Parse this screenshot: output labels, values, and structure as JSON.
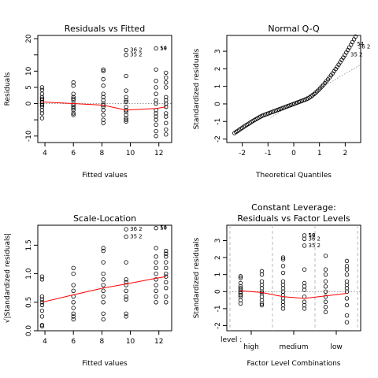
{
  "chart_data": [
    {
      "type": "scatter",
      "title": "Residuals vs Fitted",
      "xlabel": "Fitted values",
      "ylabel": "Residuals",
      "xlim": [
        3.5,
        12.9
      ],
      "ylim": [
        -12,
        21
      ],
      "xticks": [
        4,
        6,
        8,
        10,
        12
      ],
      "yticks": [
        -10,
        -5,
        0,
        5,
        10,
        15,
        20
      ],
      "ytick_labels": [
        "-10",
        "",
        "0",
        "5",
        "10",
        "",
        "20"
      ],
      "groups": [
        {
          "x": 3.8,
          "y": [
            5,
            4.2,
            3,
            2,
            1.5,
            1,
            0.5,
            0,
            -0.5,
            -1,
            -2,
            -3,
            -4.5
          ]
        },
        {
          "x": 6.0,
          "y": [
            6.5,
            5.5,
            3,
            2,
            1.5,
            1,
            0,
            -0.5,
            -1,
            -1.5,
            -2,
            -3,
            -3.5
          ]
        },
        {
          "x": 8.1,
          "y": [
            10.5,
            10,
            7.5,
            5.5,
            3,
            2,
            1,
            0,
            -0.5,
            -1,
            -2,
            -3.5,
            -5,
            -6
          ]
        },
        {
          "x": 9.7,
          "y": [
            16.5,
            15,
            8.5,
            4,
            2,
            1,
            0.5,
            -1,
            -2,
            -2.5,
            -3.5,
            -4.5,
            -5,
            -5.5
          ]
        },
        {
          "x": 11.8,
          "y": [
            17,
            10.5,
            7,
            5,
            3,
            1,
            0,
            -2,
            -3,
            -4,
            -5,
            -6.5,
            -8.5,
            -10
          ]
        },
        {
          "x": 12.5,
          "y": [
            9.5,
            8,
            6.5,
            5,
            2,
            1,
            0,
            -1,
            -3,
            -4,
            -6,
            -8,
            -9.5
          ]
        }
      ],
      "smoother": [
        [
          3.8,
          0.5
        ],
        [
          6.0,
          0
        ],
        [
          8.1,
          -0.5
        ],
        [
          9.7,
          -2
        ],
        [
          11.8,
          -1.5
        ],
        [
          12.5,
          -1
        ]
      ],
      "reference_line": 0,
      "labeled_points": [
        {
          "label": "36",
          "x": 9.7,
          "y": 16.5
        },
        {
          "label": "35",
          "x": 9.7,
          "y": 15
        },
        {
          "label": "54",
          "x": 11.8,
          "y": 17
        },
        {
          "label": "2",
          "x": 9.7,
          "y": 16.5
        },
        {
          "label": "2",
          "x": 9.7,
          "y": 15
        },
        {
          "label": "10",
          "x": 11.8,
          "y": 17
        }
      ]
    },
    {
      "type": "scatter",
      "title": "Normal Q-Q",
      "xlabel": "Theoretical Quantiles",
      "ylabel": "Standardized residuals",
      "xlim": [
        -2.6,
        2.6
      ],
      "ylim": [
        -2.2,
        3.9
      ],
      "xticks": [
        -2,
        -1,
        0,
        1,
        2
      ],
      "yticks": [
        -2,
        -1,
        0,
        1,
        2,
        3
      ],
      "qq_x_range": [
        -2.3,
        2.4
      ],
      "qq_pattern": "s-shaped",
      "reference_line": {
        "intercept": 0,
        "slope": 0.86
      },
      "labeled_points": [
        {
          "label": "54",
          "x": 2.3,
          "y": 3.4
        },
        {
          "label": "36",
          "x": 2.35,
          "y": 3.25
        },
        {
          "label": "35",
          "x": 2.05,
          "y": 2.8
        },
        {
          "label": "2",
          "x": 2.35,
          "y": 3.25
        },
        {
          "label": "2",
          "x": 2.05,
          "y": 2.8
        }
      ]
    },
    {
      "type": "scatter",
      "title": "Scale-Location",
      "xlabel": "Fitted values",
      "ylabel": "√|Standardized residuals|",
      "xlim": [
        3.5,
        12.9
      ],
      "ylim": [
        0,
        1.85
      ],
      "xticks": [
        4,
        6,
        8,
        10,
        12
      ],
      "yticks": [
        0.0,
        0.5,
        1.0,
        1.5
      ],
      "ytick_labels": [
        "0.0",
        "0.5",
        "1.0",
        "1.5"
      ],
      "groups": [
        {
          "x": 3.8,
          "y": [
            0.95,
            0.9,
            0.6,
            0.55,
            0.5,
            0.45,
            0.35,
            0.25,
            0.1,
            0.08
          ]
        },
        {
          "x": 6.0,
          "y": [
            1.1,
            1.0,
            0.8,
            0.7,
            0.6,
            0.5,
            0.4,
            0.3,
            0.25,
            0.2
          ]
        },
        {
          "x": 8.1,
          "y": [
            1.45,
            1.4,
            1.2,
            1.0,
            0.9,
            0.8,
            0.7,
            0.6,
            0.5,
            0.3,
            0.2
          ]
        },
        {
          "x": 9.7,
          "y": [
            1.78,
            1.65,
            1.2,
            0.9,
            0.85,
            0.8,
            0.7,
            0.6,
            0.55,
            0.3,
            0.25
          ]
        },
        {
          "x": 11.8,
          "y": [
            1.8,
            1.45,
            1.3,
            1.2,
            1.1,
            1.0,
            0.9,
            0.8,
            0.7,
            0.6,
            0.5
          ]
        },
        {
          "x": 12.5,
          "y": [
            1.4,
            1.35,
            1.3,
            1.2,
            1.1,
            1.0,
            0.95,
            0.85,
            0.75,
            0.6,
            0.5
          ]
        }
      ],
      "smoother": [
        [
          3.8,
          0.5
        ],
        [
          6.0,
          0.63
        ],
        [
          8.1,
          0.75
        ],
        [
          9.7,
          0.82
        ],
        [
          11.8,
          0.92
        ],
        [
          12.5,
          0.95
        ]
      ],
      "labeled_points": [
        {
          "label": "36",
          "x": 9.7,
          "y": 1.78
        },
        {
          "label": "35",
          "x": 9.7,
          "y": 1.65
        },
        {
          "label": "54",
          "x": 11.8,
          "y": 1.8
        },
        {
          "label": "2",
          "x": 9.7,
          "y": 1.78
        },
        {
          "label": "2",
          "x": 9.7,
          "y": 1.65
        },
        {
          "label": "10",
          "x": 11.8,
          "y": 1.8
        }
      ]
    },
    {
      "type": "scatter",
      "title": "Constant Leverage:",
      "subtitle": "Residuals vs Factor Levels",
      "xlabel": "Factor Level Combinations",
      "ylabel": "Standardized residuals",
      "factor_label": "level :",
      "factor_levels": [
        "high",
        "medium",
        "low"
      ],
      "ylim": [
        -2.3,
        3.9
      ],
      "yticks": [
        -2,
        -1,
        0,
        1,
        2,
        3
      ],
      "groups": [
        {
          "level": "high",
          "y": [
            0.9,
            0.8,
            0.5,
            0.3,
            0.2,
            0.1,
            0,
            -0.1,
            -0.2,
            -0.3,
            -0.5,
            -0.7
          ]
        },
        {
          "level": "high",
          "y": [
            1.2,
            1.0,
            0.6,
            0.4,
            0.2,
            0,
            -0.1,
            -0.3,
            -0.5,
            -0.7,
            -0.8
          ]
        },
        {
          "level": "medium",
          "y": [
            2.0,
            1.9,
            1.5,
            1.1,
            0.6,
            0.4,
            0.2,
            0,
            -0.2,
            -0.4,
            -0.6,
            -0.8,
            -1.0
          ]
        },
        {
          "level": "medium",
          "y": [
            3.3,
            3.1,
            2.7,
            1.3,
            0.5,
            0.3,
            0.1,
            -0.3,
            -0.6,
            -0.8,
            -1.0
          ]
        },
        {
          "level": "low",
          "y": [
            2.1,
            1.3,
            1.0,
            0.6,
            0.3,
            0,
            -0.3,
            -0.6,
            -0.9,
            -1.2
          ]
        },
        {
          "level": "low",
          "y": [
            1.8,
            1.5,
            1.3,
            1.0,
            0.6,
            0.4,
            0.2,
            0,
            -0.4,
            -0.8,
            -1.4,
            -1.8
          ]
        }
      ],
      "smoother": [
        [
          1,
          0.05
        ],
        [
          2,
          -0.05
        ],
        [
          3,
          -0.3
        ],
        [
          4,
          -0.4
        ],
        [
          5,
          -0.25
        ],
        [
          6,
          -0.1
        ]
      ],
      "reference_line": 0,
      "labeled_points": [
        {
          "label": "54",
          "x": 4,
          "y": 3.3
        },
        {
          "label": "36",
          "x": 4,
          "y": 3.1
        },
        {
          "label": "35",
          "x": 4,
          "y": 2.7
        },
        {
          "label": "10",
          "x": 4,
          "y": 3.3
        },
        {
          "label": "2",
          "x": 4,
          "y": 3.1
        },
        {
          "label": "2",
          "x": 4,
          "y": 2.7
        }
      ]
    }
  ]
}
